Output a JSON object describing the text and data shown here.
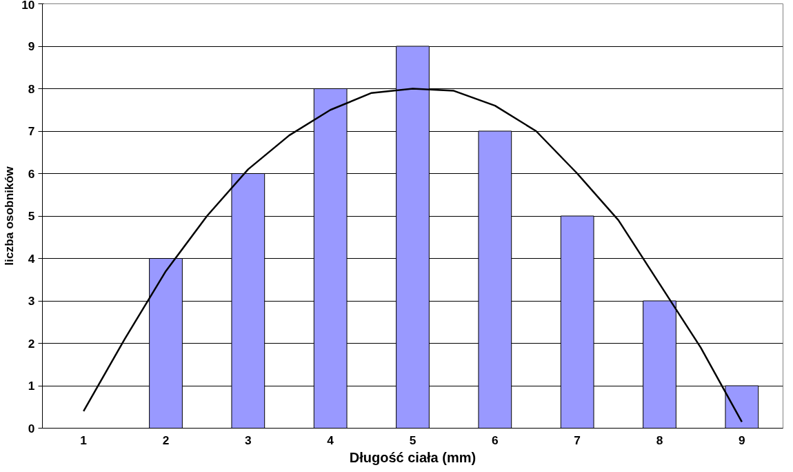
{
  "chart_data": {
    "type": "bar",
    "xlabel": "Długość ciała (mm)",
    "ylabel": "liczba osobników",
    "x": [
      1,
      2,
      3,
      4,
      5,
      6,
      7,
      8,
      9
    ],
    "xlim": [
      0.5,
      9.5
    ],
    "xticks": [
      1,
      2,
      3,
      4,
      5,
      6,
      7,
      8,
      9
    ],
    "ylim": [
      0,
      10
    ],
    "yticks": [
      0,
      1,
      2,
      3,
      4,
      5,
      6,
      7,
      8,
      9,
      10
    ],
    "grid": "y",
    "series": [
      {
        "color": "#9999ff",
        "values": [
          0,
          4,
          6,
          8,
          9,
          7,
          5,
          3,
          1
        ]
      },
      {
        "type": "line",
        "color": "#000000",
        "marker": "none",
        "line_style": "solid",
        "x": [
          1,
          1.5,
          2,
          2.5,
          3,
          3.5,
          4,
          4.5,
          5,
          5.5,
          6,
          6.5,
          7,
          7.5,
          8,
          8.5,
          9
        ],
        "values": [
          0.4,
          2.1,
          3.7,
          5.0,
          6.1,
          6.9,
          7.5,
          7.9,
          8.0,
          7.95,
          7.6,
          7.0,
          6.0,
          4.9,
          3.4,
          1.9,
          0.15
        ]
      }
    ]
  }
}
